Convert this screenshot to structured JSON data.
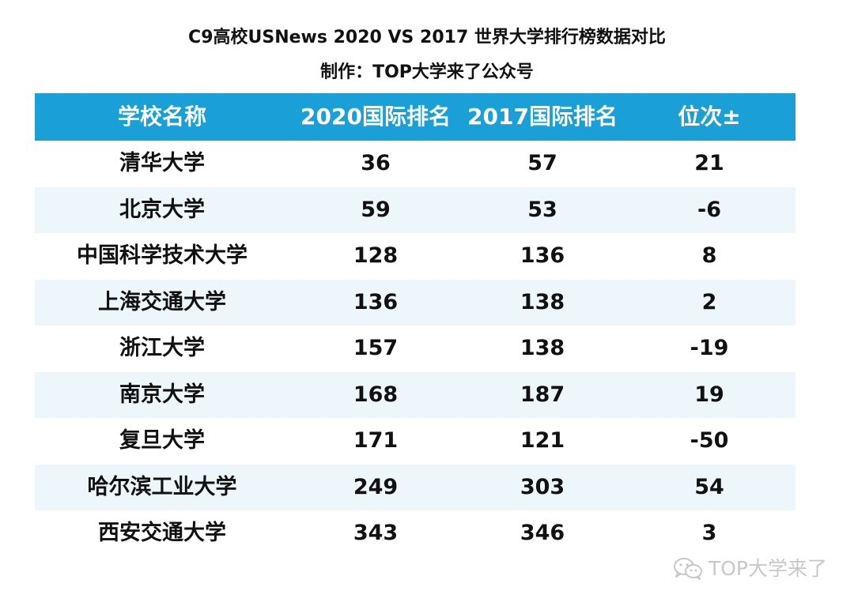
{
  "title": "C9高校USNews 2020 VS 2017 世界大学排行榜数据对比",
  "subtitle": "制作：TOP大学来了公众号",
  "table": {
    "headers": [
      "学校名称",
      "2020国际排名",
      "2017国际排名",
      "位次±"
    ],
    "rows": [
      [
        "清华大学",
        "36",
        "57",
        "21"
      ],
      [
        "北京大学",
        "59",
        "53",
        "-6"
      ],
      [
        "中国科学技术大学",
        "128",
        "136",
        "8"
      ],
      [
        "上海交通大学",
        "136",
        "138",
        "2"
      ],
      [
        "浙江大学",
        "157",
        "138",
        "-19"
      ],
      [
        "南京大学",
        "168",
        "187",
        "19"
      ],
      [
        "复旦大学",
        "171",
        "121",
        "-50"
      ],
      [
        "哈尔滨工业大学",
        "249",
        "303",
        "54"
      ],
      [
        "西安交通大学",
        "343",
        "346",
        "3"
      ]
    ]
  },
  "watermark": {
    "icon": "wechat-icon",
    "text": "TOP大学来了"
  },
  "colors": {
    "header_bg": "#1a9fd6",
    "row_shade": "#edf6fb",
    "watermark": "#c8c8c8"
  }
}
